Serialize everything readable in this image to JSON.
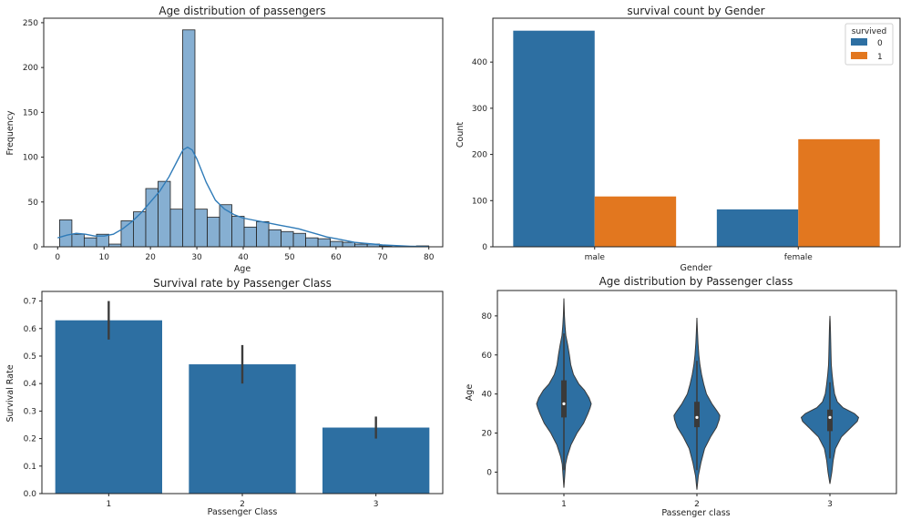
{
  "chart_data": [
    {
      "type": "histogram",
      "title": "Age distribution of passengers",
      "xlabel": "Age",
      "ylabel": "Frequency",
      "xlim": [
        -3,
        83
      ],
      "ylim": [
        0,
        255
      ],
      "xticks": [
        0,
        10,
        20,
        30,
        40,
        50,
        60,
        70,
        80
      ],
      "yticks": [
        0,
        50,
        100,
        150,
        200,
        250
      ],
      "bin_edges": [
        0.42,
        3.07,
        5.72,
        8.38,
        11.03,
        13.68,
        16.33,
        18.99,
        21.64,
        24.29,
        26.94,
        29.59,
        32.25,
        34.9,
        37.55,
        40.2,
        42.86,
        45.51,
        48.16,
        50.81,
        53.46,
        56.12,
        58.77,
        61.42,
        64.07,
        66.73,
        69.38,
        72.03,
        74.68,
        77.33,
        79.99
      ],
      "counts": [
        30,
        14,
        10,
        14,
        3,
        29,
        39,
        65,
        73,
        42,
        242,
        42,
        33,
        47,
        34,
        22,
        28,
        19,
        17,
        15,
        10,
        9,
        6,
        5,
        3,
        3,
        1,
        0,
        0,
        1
      ],
      "kde": {
        "x": [
          0,
          2,
          4,
          6,
          8,
          10,
          12,
          14,
          16,
          18,
          20,
          22,
          24,
          26,
          27,
          28,
          29,
          30,
          32,
          34,
          36,
          38,
          40,
          42,
          44,
          46,
          48,
          50,
          52,
          54,
          56,
          58,
          60,
          62,
          64,
          66,
          68,
          70,
          72,
          74,
          76,
          78,
          80
        ],
        "y": [
          10,
          13,
          15,
          14,
          12,
          12,
          14,
          20,
          28,
          38,
          50,
          62,
          78,
          98,
          108,
          111,
          108,
          98,
          72,
          52,
          42,
          36,
          32,
          30,
          28,
          26,
          24,
          22,
          20,
          17,
          14,
          11,
          9,
          7,
          5,
          4,
          3,
          2,
          1.5,
          1,
          0.6,
          0.4,
          0.2
        ]
      },
      "color": "#86afd2",
      "line_color": "#2f7bb8"
    },
    {
      "type": "bar",
      "title": "survival count by Gender",
      "xlabel": "Gender",
      "ylabel": "Count",
      "categories": [
        "male",
        "female"
      ],
      "series": [
        {
          "name": "0",
          "values": [
            468,
            81
          ],
          "color": "#2d6fa2"
        },
        {
          "name": "1",
          "values": [
            109,
            233
          ],
          "color": "#e2771f"
        }
      ],
      "legend_title": "survived",
      "legend_position": "top-right",
      "ylim": [
        0,
        495
      ],
      "yticks": [
        0,
        100,
        200,
        300,
        400
      ]
    },
    {
      "type": "bar",
      "title": "Survival rate by Passenger Class",
      "xlabel": "Passenger Class",
      "ylabel": "Survival Rate",
      "categories": [
        "1",
        "2",
        "3"
      ],
      "values": [
        0.63,
        0.47,
        0.24
      ],
      "error_low": [
        0.56,
        0.4,
        0.2
      ],
      "error_high": [
        0.7,
        0.54,
        0.28
      ],
      "ylim": [
        0,
        0.735
      ],
      "yticks": [
        "0.0",
        "0.1",
        "0.2",
        "0.3",
        "0.4",
        "0.5",
        "0.6",
        "0.7"
      ],
      "color": "#2d6fa2"
    },
    {
      "type": "violin",
      "title": "Age distribution by Passenger class",
      "xlabel": "Passenger class",
      "ylabel": "Age",
      "categories": [
        "1",
        "2",
        "3"
      ],
      "ylim": [
        -11,
        93
      ],
      "yticks": [
        0,
        20,
        40,
        60,
        80
      ],
      "color": "#2d6fa2",
      "violins": [
        {
          "profile": [
            [
              -8,
              0
            ],
            [
              -2,
              0.03
            ],
            [
              4,
              0.06
            ],
            [
              8,
              0.12
            ],
            [
              14,
              0.26
            ],
            [
              20,
              0.48
            ],
            [
              25,
              0.72
            ],
            [
              30,
              0.88
            ],
            [
              33,
              0.96
            ],
            [
              35,
              1.0
            ],
            [
              38,
              0.92
            ],
            [
              42,
              0.75
            ],
            [
              45,
              0.55
            ],
            [
              50,
              0.35
            ],
            [
              55,
              0.25
            ],
            [
              60,
              0.2
            ],
            [
              65,
              0.14
            ],
            [
              70,
              0.07
            ],
            [
              75,
              0.04
            ],
            [
              80,
              0.02
            ],
            [
              89,
              0
            ]
          ],
          "median": 35,
          "q1": 28,
          "q3": 47,
          "whisker_low": 1,
          "whisker_high": 71
        },
        {
          "profile": [
            [
              -9,
              0
            ],
            [
              -2,
              0.05
            ],
            [
              5,
              0.15
            ],
            [
              12,
              0.28
            ],
            [
              18,
              0.5
            ],
            [
              23,
              0.72
            ],
            [
              27,
              0.82
            ],
            [
              29,
              0.84
            ],
            [
              31,
              0.75
            ],
            [
              35,
              0.55
            ],
            [
              40,
              0.35
            ],
            [
              45,
              0.25
            ],
            [
              50,
              0.17
            ],
            [
              55,
              0.11
            ],
            [
              60,
              0.07
            ],
            [
              66,
              0.04
            ],
            [
              72,
              0.02
            ],
            [
              79,
              0
            ]
          ],
          "median": 28,
          "q1": 23,
          "q3": 36,
          "whisker_low": 1,
          "whisker_high": 57
        },
        {
          "profile": [
            [
              -6,
              0
            ],
            [
              0,
              0.07
            ],
            [
              6,
              0.12
            ],
            [
              12,
              0.2
            ],
            [
              18,
              0.42
            ],
            [
              23,
              0.78
            ],
            [
              26,
              1.0
            ],
            [
              28,
              1.05
            ],
            [
              30,
              0.9
            ],
            [
              33,
              0.48
            ],
            [
              36,
              0.27
            ],
            [
              40,
              0.17
            ],
            [
              45,
              0.12
            ],
            [
              50,
              0.08
            ],
            [
              55,
              0.05
            ],
            [
              60,
              0.04
            ],
            [
              66,
              0.03
            ],
            [
              72,
              0.02
            ],
            [
              77,
              0.01
            ],
            [
              80,
              0
            ]
          ],
          "median": 28,
          "q1": 21,
          "q3": 32,
          "whisker_low": 7,
          "whisker_high": 46
        }
      ]
    }
  ]
}
